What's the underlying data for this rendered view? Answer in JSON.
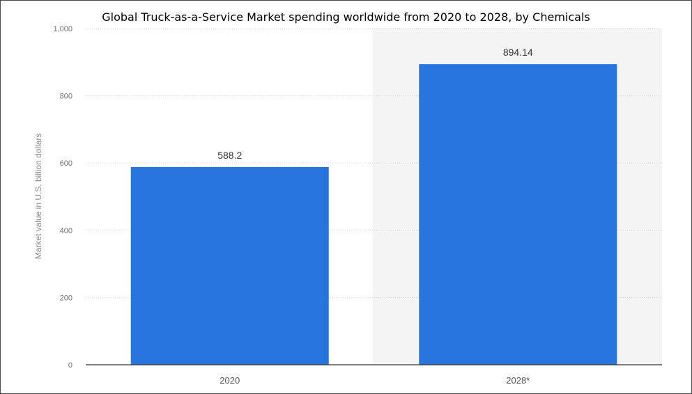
{
  "chart_data": {
    "type": "bar",
    "title": "Global Truck-as-a-Service Market spending worldwide from 2020 to 2028, by Chemicals",
    "xlabel": "",
    "ylabel": "Market value in U.S. billion dollars",
    "categories": [
      "2020",
      "2028*"
    ],
    "values": [
      588.2,
      894.14
    ],
    "data_labels": [
      "588.2",
      "894.14"
    ],
    "ylim": [
      0,
      1000
    ],
    "yticks": [
      0,
      200,
      400,
      600,
      800,
      1000
    ],
    "ytick_labels": [
      "0",
      "200",
      "400",
      "600",
      "800",
      "1,000"
    ],
    "grid": true,
    "legend": "none",
    "colors": {
      "bar": "#2776df",
      "shaded_band": "#f4f4f4",
      "grid": "#d0d0d0",
      "axis": "#333333"
    }
  }
}
